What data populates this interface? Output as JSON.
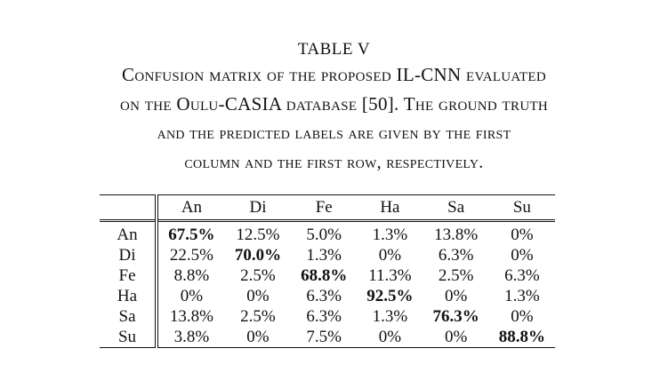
{
  "caption": {
    "table_number": "TABLE V",
    "lines": [
      "Confusion matrix of the proposed IL-CNN evaluated",
      "on the Oulu-CASIA database [50]. The ground truth",
      "and the predicted labels are given by the first",
      "column and the first row, respectively."
    ]
  },
  "table": {
    "columns": [
      "An",
      "Di",
      "Fe",
      "Ha",
      "Sa",
      "Su"
    ],
    "rows": [
      {
        "label": "An",
        "cells": [
          "67.5%",
          "12.5%",
          "5.0%",
          "1.3%",
          "13.8%",
          "0%"
        ]
      },
      {
        "label": "Di",
        "cells": [
          "22.5%",
          "70.0%",
          "1.3%",
          "0%",
          "6.3%",
          "0%"
        ]
      },
      {
        "label": "Fe",
        "cells": [
          "8.8%",
          "2.5%",
          "68.8%",
          "11.3%",
          "2.5%",
          "6.3%"
        ]
      },
      {
        "label": "Ha",
        "cells": [
          "0%",
          "0%",
          "6.3%",
          "92.5%",
          "0%",
          "1.3%"
        ]
      },
      {
        "label": "Sa",
        "cells": [
          "13.8%",
          "2.5%",
          "6.3%",
          "1.3%",
          "76.3%",
          "0%"
        ]
      },
      {
        "label": "Su",
        "cells": [
          "3.8%",
          "0%",
          "7.5%",
          "0%",
          "0%",
          "88.8%"
        ]
      }
    ]
  }
}
